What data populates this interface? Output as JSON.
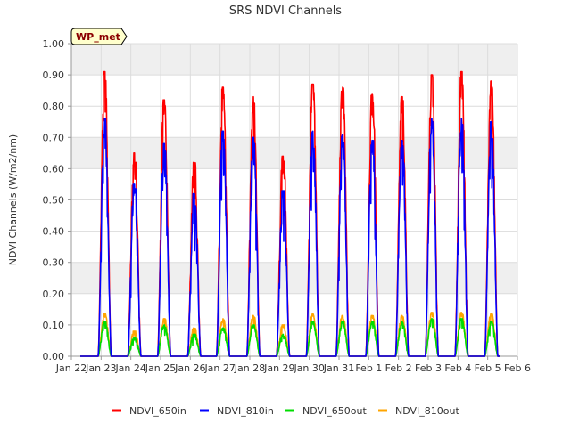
{
  "chart_data": {
    "type": "line",
    "title": "SRS NDVI Channels",
    "ylabel": "NDVI Channels (W/m2/nm)",
    "xlabel": "",
    "station_badge": "WP_met",
    "ylim": [
      0,
      1.0
    ],
    "xlim": [
      0,
      15
    ],
    "yticks": [
      0.0,
      0.1,
      0.2,
      0.3,
      0.4,
      0.5,
      0.6,
      0.7,
      0.8,
      0.9,
      1.0
    ],
    "ytick_labels": [
      "0.00",
      "0.10",
      "0.20",
      "0.30",
      "0.40",
      "0.50",
      "0.60",
      "0.70",
      "0.80",
      "0.90",
      "1.00"
    ],
    "xticks": [
      0,
      1,
      2,
      3,
      4,
      5,
      6,
      7,
      8,
      9,
      10,
      11,
      12,
      13,
      14,
      15
    ],
    "xtick_labels": [
      "Jan 22",
      "Jan 23",
      "Jan 24",
      "Jan 25",
      "Jan 26",
      "Jan 27",
      "Jan 28",
      "Jan 29",
      "Jan 30",
      "Jan 31",
      "Feb 1",
      "Feb 2",
      "Feb 3",
      "Feb 4",
      "Feb 5",
      "Feb 6"
    ],
    "legend_position": "bottom-center",
    "colors": {
      "plot_band": "#efefef",
      "grid": "#dcdcdc",
      "axis": "#999999",
      "badge_fill": "#ffffcc",
      "badge_text": "#8b0000"
    },
    "day_centers": [
      1.12,
      2.12,
      3.12,
      4.13,
      5.1,
      6.12,
      7.12,
      8.12,
      9.12,
      10.12,
      11.12,
      12.12,
      13.12,
      14.12
    ],
    "day_half_width": 0.22,
    "series": [
      {
        "name": "NDVI_650in",
        "color": "#ff0000",
        "peaks": [
          0.91,
          0.65,
          0.82,
          0.62,
          0.86,
          0.83,
          0.64,
          0.87,
          0.86,
          0.84,
          0.83,
          0.9,
          0.91,
          0.88
        ],
        "jitter": 0.06
      },
      {
        "name": "NDVI_810in",
        "color": "#0000ff",
        "peaks": [
          0.76,
          0.55,
          0.68,
          0.52,
          0.72,
          0.7,
          0.53,
          0.72,
          0.71,
          0.69,
          0.69,
          0.76,
          0.76,
          0.75
        ],
        "jitter": 0.06
      },
      {
        "name": "NDVI_650out",
        "color": "#00dd00",
        "peaks": [
          0.11,
          0.06,
          0.1,
          0.07,
          0.09,
          0.1,
          0.07,
          0.11,
          0.11,
          0.11,
          0.11,
          0.12,
          0.12,
          0.11
        ],
        "jitter": 0.01
      },
      {
        "name": "NDVI_810out",
        "color": "#ffa500",
        "peaks": [
          0.135,
          0.08,
          0.12,
          0.09,
          0.12,
          0.13,
          0.1,
          0.135,
          0.13,
          0.13,
          0.13,
          0.14,
          0.14,
          0.135
        ],
        "jitter": 0.01
      }
    ]
  }
}
